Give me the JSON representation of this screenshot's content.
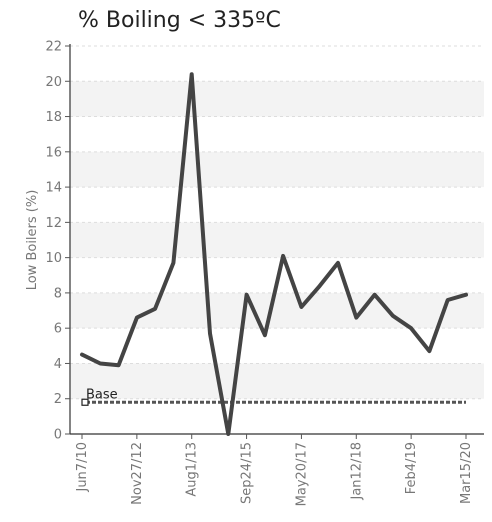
{
  "chart_data": {
    "type": "line",
    "title": "% Boiling < 335ºC",
    "ylabel": "Low Boilers (%)",
    "xlabel": "",
    "ylim": [
      0,
      22
    ],
    "yticks": [
      0,
      2,
      4,
      6,
      8,
      10,
      12,
      14,
      16,
      18,
      20,
      22
    ],
    "x_tick_labels": [
      "Jun7/10",
      "Nov27/12",
      "Aug1/13",
      "Sep24/15",
      "May20/17",
      "Jan12/18",
      "Feb4/19",
      "Mar15/20"
    ],
    "grid": "horizontal dashed, alternating light bands",
    "series": [
      {
        "color": "#444444",
        "values": [
          4.5,
          4.0,
          3.9,
          6.6,
          7.1,
          9.7,
          20.4,
          5.7,
          0.0,
          7.9,
          5.6,
          10.1,
          7.2,
          8.4,
          9.7,
          6.6,
          7.9,
          6.7,
          6.0,
          4.7,
          7.6,
          7.9
        ]
      }
    ],
    "reference_line": {
      "name": "Base",
      "value": 1.8,
      "color": "#555555",
      "style": "dashed"
    }
  }
}
